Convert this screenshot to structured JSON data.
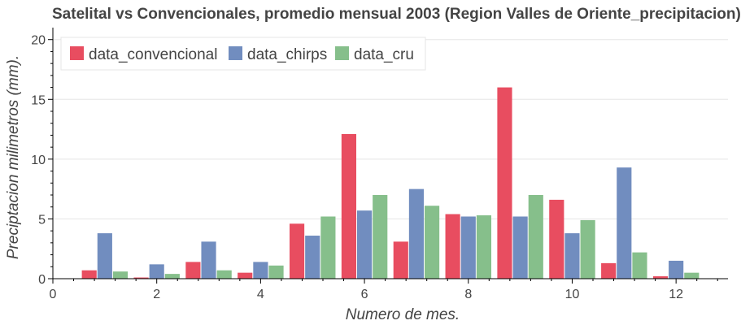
{
  "chart_data": {
    "type": "bar",
    "title": "Satelital vs Convencionales, promedio mensual 2003 (Region Valles de Oriente_precipitacion)",
    "xlabel": "Numero de mes.",
    "ylabel": "Preciptacion milimetros (mm).",
    "xlim": [
      0,
      13
    ],
    "ylim": [
      0,
      21
    ],
    "xticks": [
      0,
      2,
      4,
      6,
      8,
      10,
      12
    ],
    "yticks": [
      0,
      5,
      10,
      15,
      20
    ],
    "grid": true,
    "legend_position": "top-left",
    "x": [
      1,
      2,
      3,
      4,
      5,
      6,
      7,
      8,
      9,
      10,
      11,
      12
    ],
    "series": [
      {
        "name": "data_convencional",
        "color": "#e84d60",
        "values": [
          0.7,
          0.1,
          1.4,
          0.5,
          4.6,
          12.1,
          3.1,
          5.4,
          16.0,
          6.6,
          1.3,
          0.2
        ]
      },
      {
        "name": "data_chirps",
        "color": "#718dbf",
        "values": [
          3.8,
          1.2,
          3.1,
          1.4,
          3.6,
          5.7,
          7.5,
          5.2,
          5.2,
          3.8,
          9.3,
          1.5
        ]
      },
      {
        "name": "data_cru",
        "color": "#86bf8b",
        "values": [
          0.6,
          0.4,
          0.7,
          1.1,
          5.2,
          7.0,
          6.1,
          5.3,
          7.0,
          4.9,
          2.2,
          0.5
        ]
      }
    ]
  }
}
